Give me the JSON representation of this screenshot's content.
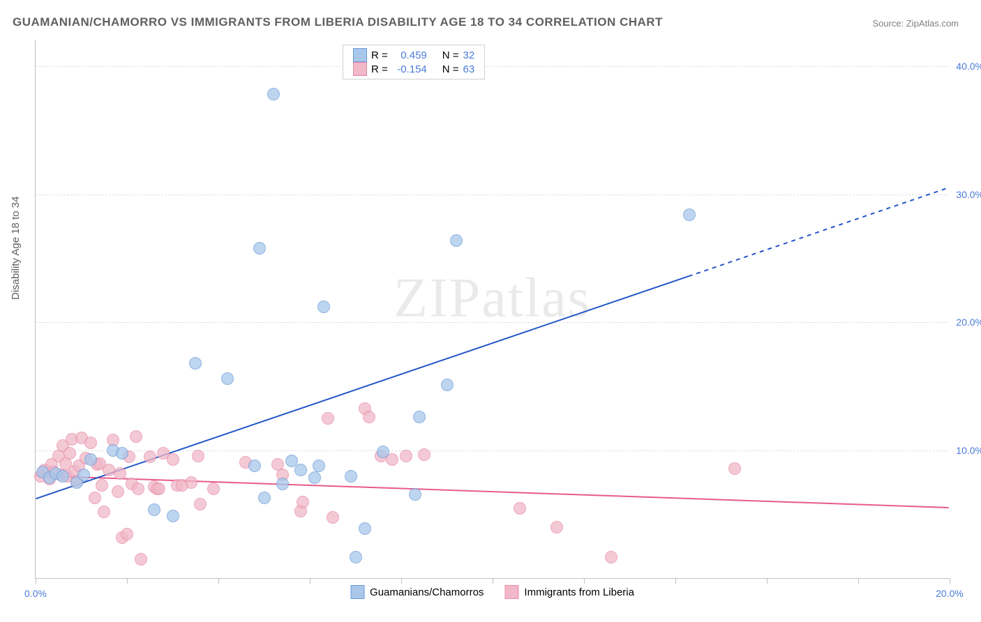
{
  "chart": {
    "title": "GUAMANIAN/CHAMORRO VS IMMIGRANTS FROM LIBERIA DISABILITY AGE 18 TO 34 CORRELATION CHART",
    "source": "Source: ZipAtlas.com",
    "y_axis_label": "Disability Age 18 to 34",
    "watermark": "ZIPatlas",
    "type": "scatter",
    "background_color": "#ffffff",
    "grid_color": "#e0e0e0",
    "axis_color": "#c0c0c0",
    "tick_label_color": "#4a7bd8",
    "title_color": "#606060",
    "title_fontsize": 17,
    "label_fontsize": 15,
    "tick_fontsize": 14,
    "xlim": [
      0,
      20
    ],
    "ylim": [
      0,
      42
    ],
    "y_ticks": [
      10,
      20,
      30,
      40
    ],
    "y_tick_labels": [
      "10.0%",
      "20.0%",
      "30.0%",
      "40.0%"
    ],
    "x_ticks": [
      0,
      2,
      4,
      6,
      8,
      10,
      12,
      14,
      16,
      18,
      20
    ],
    "x_tick_labels": [
      "0.0%",
      "",
      "",
      "",
      "",
      "",
      "",
      "",
      "",
      "",
      "20.0%"
    ],
    "series_a": {
      "label": "Guamanians/Chamorros",
      "marker_fill": "#a8c7ea",
      "marker_stroke": "#6b9bd8",
      "marker_size": 18,
      "trend_color": "#2456c7",
      "trend_width": 2,
      "r_value": "0.459",
      "n_value": "32",
      "trend_start": {
        "x": 0,
        "y": 6.2
      },
      "trend_end": {
        "x": 20,
        "y": 30.5
      },
      "trend_solid_until_x": 14.3,
      "points": [
        {
          "x": 0.15,
          "y": 8.3
        },
        {
          "x": 0.3,
          "y": 7.9
        },
        {
          "x": 0.45,
          "y": 8.2
        },
        {
          "x": 0.6,
          "y": 8.0
        },
        {
          "x": 0.9,
          "y": 7.5
        },
        {
          "x": 1.05,
          "y": 8.1
        },
        {
          "x": 1.2,
          "y": 9.3
        },
        {
          "x": 1.7,
          "y": 10.0
        },
        {
          "x": 1.9,
          "y": 9.8
        },
        {
          "x": 2.6,
          "y": 5.4
        },
        {
          "x": 3.0,
          "y": 4.9
        },
        {
          "x": 3.5,
          "y": 16.8
        },
        {
          "x": 4.2,
          "y": 15.6
        },
        {
          "x": 4.8,
          "y": 8.8
        },
        {
          "x": 4.9,
          "y": 25.8
        },
        {
          "x": 5.0,
          "y": 6.3
        },
        {
          "x": 5.2,
          "y": 37.8
        },
        {
          "x": 5.4,
          "y": 7.4
        },
        {
          "x": 5.6,
          "y": 9.2
        },
        {
          "x": 6.1,
          "y": 7.9
        },
        {
          "x": 6.2,
          "y": 8.8
        },
        {
          "x": 6.3,
          "y": 21.2
        },
        {
          "x": 7.0,
          "y": 1.7
        },
        {
          "x": 7.2,
          "y": 3.9
        },
        {
          "x": 7.6,
          "y": 9.9
        },
        {
          "x": 8.3,
          "y": 6.6
        },
        {
          "x": 8.4,
          "y": 12.6
        },
        {
          "x": 9.0,
          "y": 15.1
        },
        {
          "x": 9.2,
          "y": 26.4
        },
        {
          "x": 14.3,
          "y": 28.4
        },
        {
          "x": 6.9,
          "y": 8.0
        },
        {
          "x": 5.8,
          "y": 8.5
        }
      ]
    },
    "series_b": {
      "label": "Immigrants from Liberia",
      "marker_fill": "#f0b8c8",
      "marker_stroke": "#e88aa8",
      "marker_size": 18,
      "trend_color": "#e85a8a",
      "trend_width": 2,
      "r_value": "-0.154",
      "n_value": "63",
      "trend_start": {
        "x": 0,
        "y": 8.0
      },
      "trend_end": {
        "x": 20,
        "y": 5.5
      },
      "trend_solid_until_x": 20,
      "points": [
        {
          "x": 0.1,
          "y": 8.0
        },
        {
          "x": 0.2,
          "y": 8.5
        },
        {
          "x": 0.3,
          "y": 7.8
        },
        {
          "x": 0.35,
          "y": 8.9
        },
        {
          "x": 0.4,
          "y": 8.3
        },
        {
          "x": 0.5,
          "y": 9.6
        },
        {
          "x": 0.55,
          "y": 8.1
        },
        {
          "x": 0.6,
          "y": 10.4
        },
        {
          "x": 0.65,
          "y": 9.0
        },
        {
          "x": 0.7,
          "y": 8.0
        },
        {
          "x": 0.75,
          "y": 9.8
        },
        {
          "x": 0.8,
          "y": 10.9
        },
        {
          "x": 0.85,
          "y": 8.4
        },
        {
          "x": 0.9,
          "y": 7.6
        },
        {
          "x": 0.95,
          "y": 8.8
        },
        {
          "x": 1.0,
          "y": 11.0
        },
        {
          "x": 1.1,
          "y": 9.4
        },
        {
          "x": 1.2,
          "y": 10.6
        },
        {
          "x": 1.3,
          "y": 6.3
        },
        {
          "x": 1.35,
          "y": 8.9
        },
        {
          "x": 1.4,
          "y": 9.0
        },
        {
          "x": 1.45,
          "y": 7.3
        },
        {
          "x": 1.5,
          "y": 5.2
        },
        {
          "x": 1.6,
          "y": 8.5
        },
        {
          "x": 1.7,
          "y": 10.8
        },
        {
          "x": 1.8,
          "y": 6.8
        },
        {
          "x": 1.85,
          "y": 8.2
        },
        {
          "x": 1.9,
          "y": 3.2
        },
        {
          "x": 2.0,
          "y": 3.5
        },
        {
          "x": 2.05,
          "y": 9.5
        },
        {
          "x": 2.1,
          "y": 7.4
        },
        {
          "x": 2.2,
          "y": 11.1
        },
        {
          "x": 2.25,
          "y": 7.0
        },
        {
          "x": 2.3,
          "y": 1.5
        },
        {
          "x": 2.5,
          "y": 9.5
        },
        {
          "x": 2.6,
          "y": 7.2
        },
        {
          "x": 2.65,
          "y": 7.0
        },
        {
          "x": 2.7,
          "y": 7.0
        },
        {
          "x": 2.8,
          "y": 9.8
        },
        {
          "x": 3.0,
          "y": 9.3
        },
        {
          "x": 3.1,
          "y": 7.3
        },
        {
          "x": 3.2,
          "y": 7.3
        },
        {
          "x": 3.4,
          "y": 7.5
        },
        {
          "x": 3.55,
          "y": 9.6
        },
        {
          "x": 3.6,
          "y": 5.8
        },
        {
          "x": 3.9,
          "y": 7.0
        },
        {
          "x": 4.6,
          "y": 9.1
        },
        {
          "x": 5.3,
          "y": 8.9
        },
        {
          "x": 5.4,
          "y": 8.1
        },
        {
          "x": 5.8,
          "y": 5.3
        },
        {
          "x": 5.85,
          "y": 6.0
        },
        {
          "x": 6.4,
          "y": 12.5
        },
        {
          "x": 6.5,
          "y": 4.8
        },
        {
          "x": 7.2,
          "y": 13.3
        },
        {
          "x": 7.3,
          "y": 12.6
        },
        {
          "x": 7.55,
          "y": 9.6
        },
        {
          "x": 7.8,
          "y": 9.3
        },
        {
          "x": 8.1,
          "y": 9.6
        },
        {
          "x": 8.5,
          "y": 9.7
        },
        {
          "x": 10.6,
          "y": 5.5
        },
        {
          "x": 11.4,
          "y": 4.0
        },
        {
          "x": 12.6,
          "y": 1.7
        },
        {
          "x": 15.3,
          "y": 8.6
        }
      ]
    },
    "legend_labels": {
      "r_prefix": "R =",
      "n_prefix": "N ="
    }
  }
}
